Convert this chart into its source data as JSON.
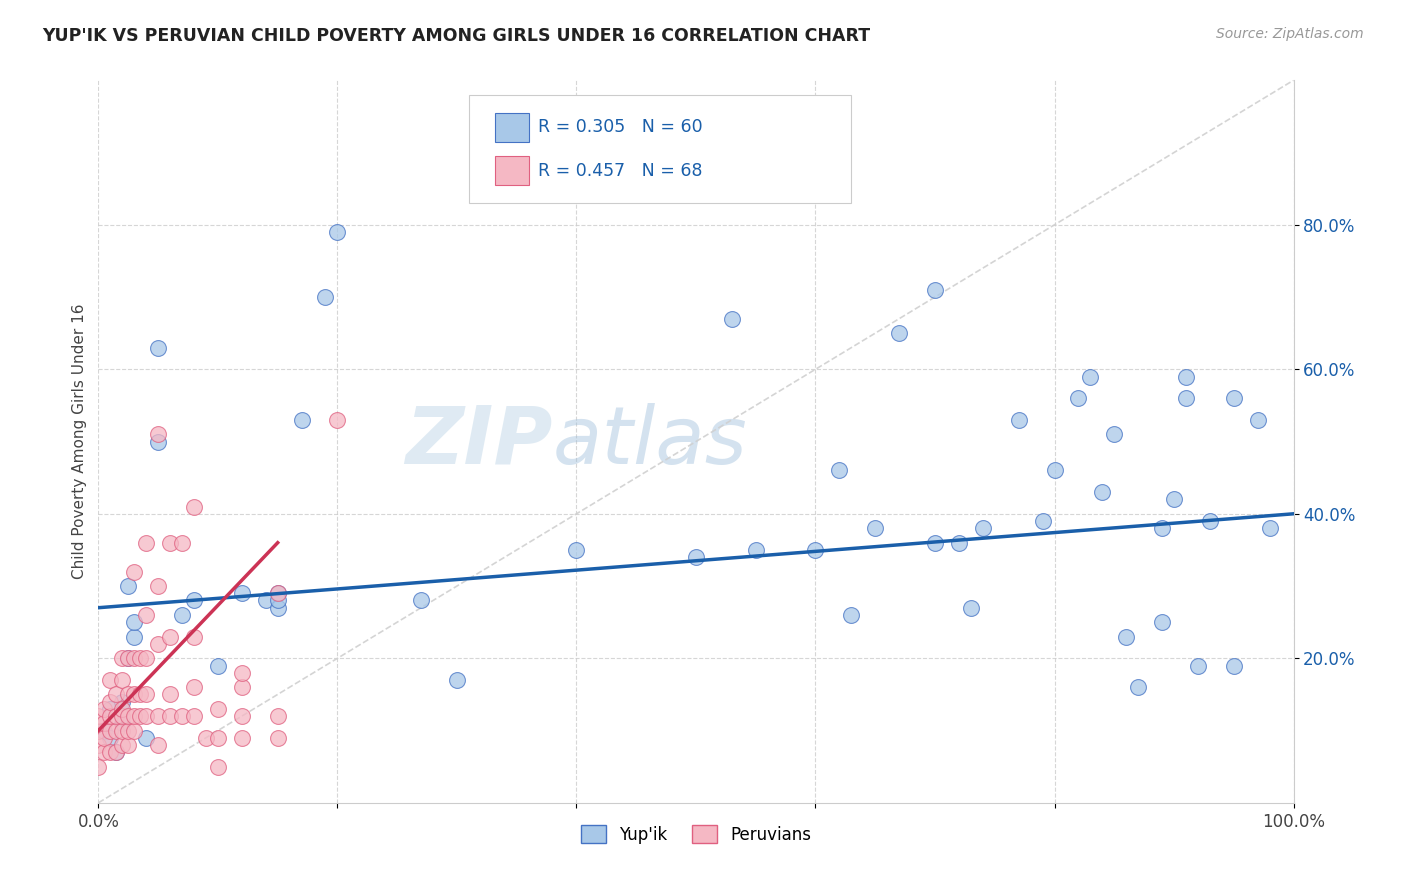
{
  "title": "YUP'IK VS PERUVIAN CHILD POVERTY AMONG GIRLS UNDER 16 CORRELATION CHART",
  "source": "Source: ZipAtlas.com",
  "ylabel": "Child Poverty Among Girls Under 16",
  "xlim": [
    0,
    1.0
  ],
  "ylim": [
    0,
    1.0
  ],
  "xtick_positions": [
    0.0,
    0.2,
    0.4,
    0.6,
    0.8,
    1.0
  ],
  "xticklabels": [
    "0.0%",
    "",
    "",
    "",
    "",
    "100.0%"
  ],
  "ytick_positions": [
    0.2,
    0.4,
    0.6,
    0.8
  ],
  "ytick_labels": [
    "20.0%",
    "40.0%",
    "60.0%",
    "80.0%"
  ],
  "R_yupik": 0.305,
  "N_yupik": 60,
  "R_peruvian": 0.457,
  "N_peruvian": 68,
  "blue_fill": "#a8c8e8",
  "blue_edge": "#4472c4",
  "pink_fill": "#f5b8c4",
  "pink_edge": "#e06080",
  "trendline_blue": "#1a5faa",
  "trendline_pink": "#cc3355",
  "diag_color": "#d0d0d0",
  "watermark_color": "#d8e8f4",
  "yupik_points": [
    [
      0.005,
      0.1
    ],
    [
      0.01,
      0.09
    ],
    [
      0.01,
      0.13
    ],
    [
      0.015,
      0.07
    ],
    [
      0.02,
      0.11
    ],
    [
      0.02,
      0.14
    ],
    [
      0.025,
      0.2
    ],
    [
      0.025,
      0.3
    ],
    [
      0.03,
      0.23
    ],
    [
      0.03,
      0.25
    ],
    [
      0.04,
      0.09
    ],
    [
      0.05,
      0.5
    ],
    [
      0.05,
      0.63
    ],
    [
      0.07,
      0.26
    ],
    [
      0.08,
      0.28
    ],
    [
      0.1,
      0.19
    ],
    [
      0.12,
      0.29
    ],
    [
      0.14,
      0.28
    ],
    [
      0.15,
      0.29
    ],
    [
      0.17,
      0.53
    ],
    [
      0.19,
      0.7
    ],
    [
      0.2,
      0.79
    ],
    [
      0.15,
      0.27
    ],
    [
      0.15,
      0.28
    ],
    [
      0.27,
      0.28
    ],
    [
      0.3,
      0.17
    ],
    [
      0.4,
      0.35
    ],
    [
      0.5,
      0.34
    ],
    [
      0.53,
      0.67
    ],
    [
      0.55,
      0.35
    ],
    [
      0.6,
      0.35
    ],
    [
      0.62,
      0.46
    ],
    [
      0.63,
      0.26
    ],
    [
      0.65,
      0.38
    ],
    [
      0.67,
      0.65
    ],
    [
      0.7,
      0.36
    ],
    [
      0.7,
      0.71
    ],
    [
      0.72,
      0.36
    ],
    [
      0.73,
      0.27
    ],
    [
      0.74,
      0.38
    ],
    [
      0.77,
      0.53
    ],
    [
      0.79,
      0.39
    ],
    [
      0.8,
      0.46
    ],
    [
      0.82,
      0.56
    ],
    [
      0.83,
      0.59
    ],
    [
      0.84,
      0.43
    ],
    [
      0.85,
      0.51
    ],
    [
      0.86,
      0.23
    ],
    [
      0.87,
      0.16
    ],
    [
      0.89,
      0.25
    ],
    [
      0.89,
      0.38
    ],
    [
      0.9,
      0.42
    ],
    [
      0.91,
      0.56
    ],
    [
      0.91,
      0.59
    ],
    [
      0.92,
      0.19
    ],
    [
      0.93,
      0.39
    ],
    [
      0.95,
      0.19
    ],
    [
      0.95,
      0.56
    ],
    [
      0.97,
      0.53
    ],
    [
      0.98,
      0.38
    ]
  ],
  "peruvian_points": [
    [
      0.0,
      0.05
    ],
    [
      0.0,
      0.08
    ],
    [
      0.0,
      0.1
    ],
    [
      0.0,
      0.12
    ],
    [
      0.005,
      0.07
    ],
    [
      0.005,
      0.09
    ],
    [
      0.005,
      0.11
    ],
    [
      0.005,
      0.13
    ],
    [
      0.01,
      0.07
    ],
    [
      0.01,
      0.1
    ],
    [
      0.01,
      0.12
    ],
    [
      0.01,
      0.14
    ],
    [
      0.01,
      0.17
    ],
    [
      0.015,
      0.07
    ],
    [
      0.015,
      0.1
    ],
    [
      0.015,
      0.12
    ],
    [
      0.015,
      0.15
    ],
    [
      0.02,
      0.08
    ],
    [
      0.02,
      0.1
    ],
    [
      0.02,
      0.12
    ],
    [
      0.02,
      0.13
    ],
    [
      0.02,
      0.17
    ],
    [
      0.02,
      0.2
    ],
    [
      0.025,
      0.08
    ],
    [
      0.025,
      0.1
    ],
    [
      0.025,
      0.12
    ],
    [
      0.025,
      0.15
    ],
    [
      0.025,
      0.2
    ],
    [
      0.03,
      0.1
    ],
    [
      0.03,
      0.12
    ],
    [
      0.03,
      0.15
    ],
    [
      0.03,
      0.2
    ],
    [
      0.03,
      0.32
    ],
    [
      0.035,
      0.12
    ],
    [
      0.035,
      0.15
    ],
    [
      0.035,
      0.2
    ],
    [
      0.04,
      0.12
    ],
    [
      0.04,
      0.15
    ],
    [
      0.04,
      0.2
    ],
    [
      0.04,
      0.26
    ],
    [
      0.04,
      0.36
    ],
    [
      0.05,
      0.08
    ],
    [
      0.05,
      0.12
    ],
    [
      0.05,
      0.22
    ],
    [
      0.05,
      0.3
    ],
    [
      0.05,
      0.51
    ],
    [
      0.06,
      0.12
    ],
    [
      0.06,
      0.15
    ],
    [
      0.06,
      0.23
    ],
    [
      0.06,
      0.36
    ],
    [
      0.07,
      0.12
    ],
    [
      0.07,
      0.36
    ],
    [
      0.08,
      0.12
    ],
    [
      0.08,
      0.16
    ],
    [
      0.08,
      0.23
    ],
    [
      0.08,
      0.41
    ],
    [
      0.09,
      0.09
    ],
    [
      0.1,
      0.05
    ],
    [
      0.1,
      0.09
    ],
    [
      0.1,
      0.13
    ],
    [
      0.12,
      0.09
    ],
    [
      0.12,
      0.12
    ],
    [
      0.12,
      0.16
    ],
    [
      0.12,
      0.18
    ],
    [
      0.15,
      0.09
    ],
    [
      0.15,
      0.12
    ],
    [
      0.15,
      0.29
    ],
    [
      0.2,
      0.53
    ]
  ]
}
